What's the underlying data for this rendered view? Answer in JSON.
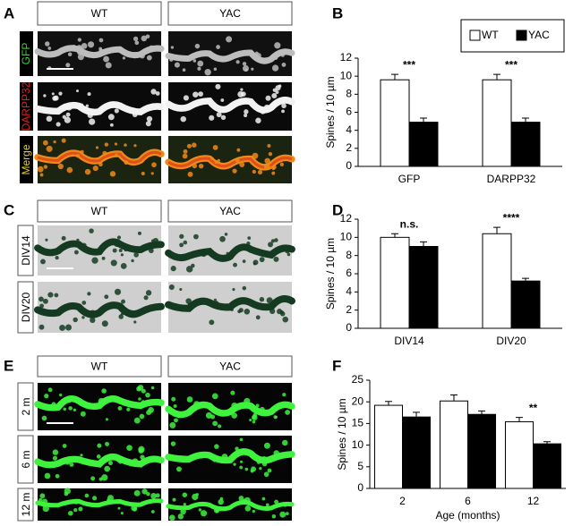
{
  "panel_labels": [
    "A",
    "B",
    "C",
    "D",
    "E",
    "F"
  ],
  "image_panels": [
    {
      "columns": [
        "WT",
        "YAC"
      ],
      "rows": [
        "GFP",
        "DARPP32",
        "Merge"
      ]
    },
    {
      "columns": [
        "WT",
        "YAC"
      ],
      "rows": [
        "DIV14",
        "DIV20"
      ]
    },
    {
      "columns": [
        "WT",
        "YAC"
      ],
      "rows": [
        "2 m",
        "6 m",
        "12 m"
      ]
    }
  ],
  "chart_data": [
    {
      "type": "bar",
      "ylabel": "Spines / 10 µm",
      "categories": [
        "GFP",
        "DARPP32"
      ],
      "series": [
        {
          "name": "WT",
          "color": "#ffffff",
          "values": [
            9.6,
            9.6
          ],
          "errors": [
            0.6,
            0.6
          ]
        },
        {
          "name": "YAC",
          "color": "#000000",
          "values": [
            4.9,
            4.9
          ],
          "errors": [
            0.45,
            0.45
          ]
        }
      ],
      "annotations": [
        "***",
        "***"
      ],
      "ylim": [
        0,
        12
      ],
      "yticks": [
        0,
        2,
        4,
        6,
        8,
        10,
        12
      ],
      "legend": "top-right",
      "grid": false
    },
    {
      "type": "bar",
      "ylabel": "Spines / 10 µm",
      "categories": [
        "DIV14",
        "DIV20"
      ],
      "series": [
        {
          "name": "WT",
          "color": "#ffffff",
          "values": [
            10.0,
            10.4
          ],
          "errors": [
            0.4,
            0.7
          ]
        },
        {
          "name": "YAC",
          "color": "#000000",
          "values": [
            9.0,
            5.2
          ],
          "errors": [
            0.5,
            0.3
          ]
        }
      ],
      "annotations": [
        "n.s.",
        "****"
      ],
      "ylim": [
        0,
        12
      ],
      "yticks": [
        0,
        2,
        4,
        6,
        8,
        10,
        12
      ],
      "grid": false
    },
    {
      "type": "bar",
      "ylabel": "Spines / 10 µm",
      "xlabel": "Age (months)",
      "categories": [
        "2",
        "6",
        "12"
      ],
      "series": [
        {
          "name": "WT",
          "color": "#ffffff",
          "values": [
            19.2,
            20.2,
            15.4
          ],
          "errors": [
            0.9,
            1.4,
            1.0
          ]
        },
        {
          "name": "YAC",
          "color": "#000000",
          "values": [
            16.5,
            17.1,
            10.3
          ],
          "errors": [
            1.1,
            0.8,
            0.5
          ]
        }
      ],
      "annotations": [
        null,
        null,
        "**"
      ],
      "ylim": [
        0,
        25
      ],
      "yticks": [
        0,
        5,
        10,
        15,
        20,
        25
      ],
      "grid": false
    }
  ]
}
